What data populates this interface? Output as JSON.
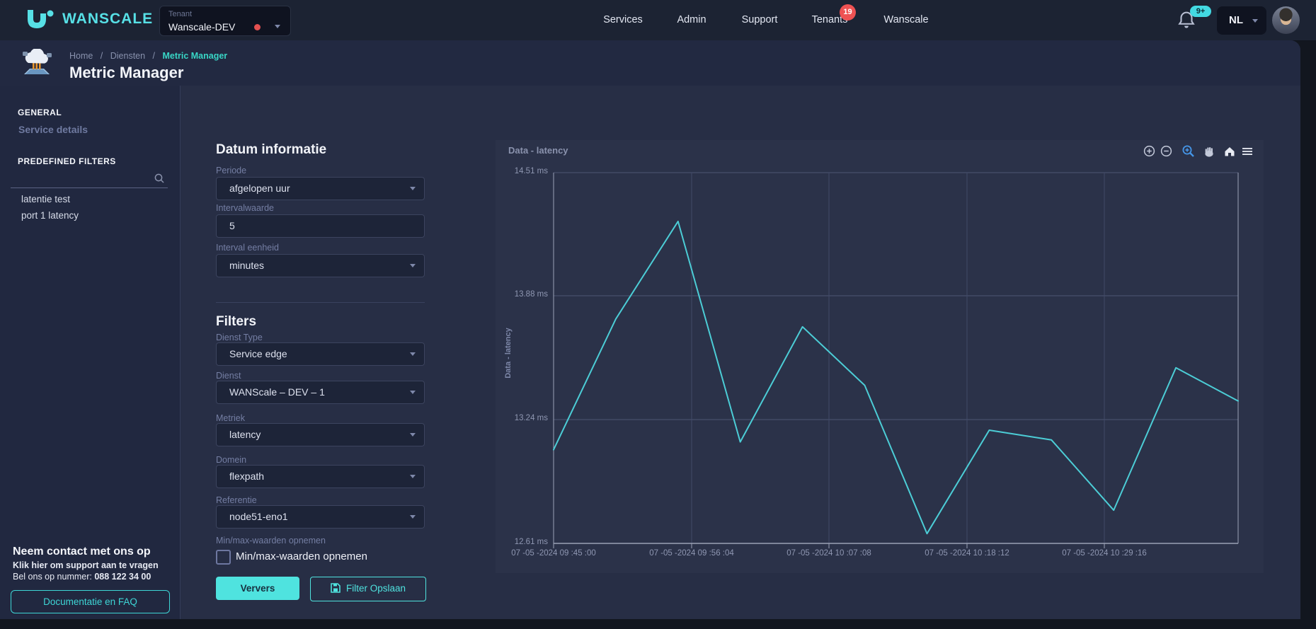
{
  "navbar": {
    "brand": "WANSCALE",
    "tenant_label": "Tenant",
    "tenant_value": "Wanscale-DEV",
    "nav_items": [
      "Services",
      "Admin",
      "Support",
      "Tenants",
      "Wanscale"
    ],
    "tenants_badge": "19",
    "notifications_badge": "9+",
    "language": "NL"
  },
  "header": {
    "breadcrumb": [
      "Home",
      "Diensten",
      "Metric Manager"
    ],
    "breadcrumb_separator": "/",
    "title": "Metric Manager"
  },
  "sidebar": {
    "section_general": "GENERAL",
    "service_details": "Service details",
    "section_filters": "PREDEFINED FILTERS",
    "filter_items": [
      "latentie test",
      "port 1 latency"
    ],
    "contact_title": "Neem contact met ons op",
    "contact_line1": "Klik hier om support aan te vragen",
    "contact_line2_prefix": "Bel ons op nummer: ",
    "contact_phone": "088 122 34 00",
    "docs_button": "Documentatie en FAQ"
  },
  "form": {
    "date_section_title": "Datum informatie",
    "periode_label": "Periode",
    "periode_value": "afgelopen uur",
    "interval_value_label": "Intervalwaarde",
    "interval_value": "5",
    "interval_unit_label": "Interval eenheid",
    "interval_unit_value": "minutes",
    "filters_section_title": "Filters",
    "dienst_type_label": "Dienst Type",
    "dienst_type_value": "Service edge",
    "dienst_label": "Dienst",
    "dienst_value": "WANScale – DEV – 1",
    "metriek_label": "Metriek",
    "metriek_value": "latency",
    "domein_label": "Domein",
    "domein_value": "flexpath",
    "referentie_label": "Referentie",
    "referentie_value": "node51-eno1",
    "minmax_label": "Min/max-waarden opnemen",
    "minmax_checkbox_label": "Min/max-waarden opnemen",
    "minmax_checked": false,
    "refresh_button": "Ververs",
    "save_button": "Filter Opslaan"
  },
  "icons": {
    "search": "magnifier",
    "bell": "notification-bell",
    "chevron": "caret-down",
    "toolbar": [
      "zoom-in",
      "zoom-out",
      "selection-zoom",
      "pan-hand",
      "home-reset",
      "menu"
    ],
    "save": "floppy-disk",
    "page": "cloud-metrics"
  },
  "chart_data": {
    "type": "line",
    "title": "Data - latency",
    "ylabel": "Data - latency",
    "line_color": "#4ccdd6",
    "grid": true,
    "legend": "none",
    "ylim": [
      12.61,
      14.51
    ],
    "y_ticks": [
      "14.51 ms",
      "13.88 ms",
      "13.24 ms",
      "12.61 ms"
    ],
    "y_tick_values": [
      14.51,
      13.88,
      13.24,
      12.61
    ],
    "x_ticks": [
      "07 -05 -2024 09 :45 :00",
      "07 -05 -2024 09 :56 :04",
      "07 -05 -2024 10 :07 :08",
      "07 -05 -2024 10 :18 :12",
      "07 -05 -2024 10 :29 :16"
    ],
    "series": [
      {
        "name": "latency",
        "x": [
          "09:45:00",
          "09:50:00",
          "09:55:00",
          "10:00:00",
          "10:05:00",
          "10:10:00",
          "10:15:00",
          "10:20:00",
          "10:25:00",
          "10:30:00",
          "10:35:00",
          "10:40:00"
        ],
        "values": [
          13.09,
          13.76,
          14.26,
          13.13,
          13.72,
          13.42,
          12.66,
          13.19,
          13.14,
          12.78,
          13.51,
          13.34
        ]
      }
    ]
  }
}
